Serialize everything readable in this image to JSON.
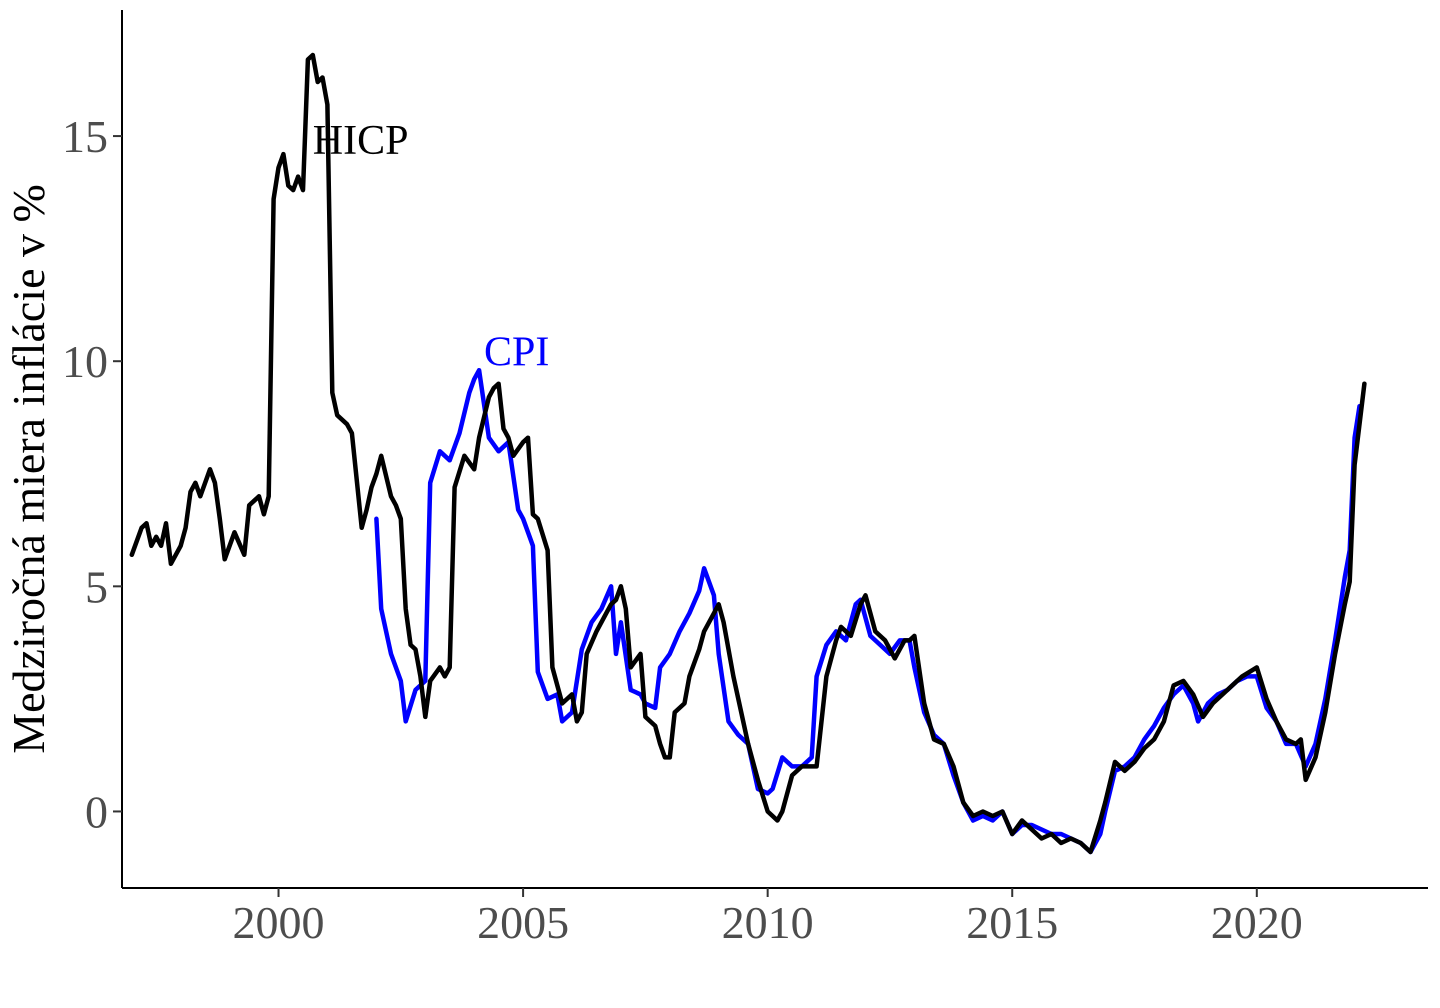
{
  "chart_data": {
    "type": "line",
    "title": "",
    "xlabel": "",
    "ylabel": "Medziročná miera inflácie v %",
    "xlim": [
      1996.8,
      2023.5
    ],
    "ylim": [
      -1.7,
      17.8
    ],
    "x_ticks": [
      2000,
      2005,
      2010,
      2015,
      2020
    ],
    "x_tick_labels": [
      "2000",
      "2005",
      "2010",
      "2015",
      "2020"
    ],
    "y_ticks": [
      0,
      5,
      10,
      15
    ],
    "y_tick_labels": [
      "0",
      "5",
      "10",
      "15"
    ],
    "grid": false,
    "series": [
      {
        "name": "CPI",
        "label": "CPI",
        "color": "#0000ff",
        "label_at": [
          2004.2,
          9.9
        ],
        "points": [
          [
            2002.0,
            6.5
          ],
          [
            2002.1,
            4.5
          ],
          [
            2002.3,
            3.5
          ],
          [
            2002.5,
            2.9
          ],
          [
            2002.6,
            2.0
          ],
          [
            2002.8,
            2.7
          ],
          [
            2003.0,
            2.9
          ],
          [
            2003.1,
            7.3
          ],
          [
            2003.3,
            8.0
          ],
          [
            2003.5,
            7.8
          ],
          [
            2003.7,
            8.4
          ],
          [
            2003.9,
            9.3
          ],
          [
            2004.0,
            9.6
          ],
          [
            2004.1,
            9.8
          ],
          [
            2004.3,
            8.3
          ],
          [
            2004.5,
            8.0
          ],
          [
            2004.7,
            8.2
          ],
          [
            2004.9,
            6.7
          ],
          [
            2005.0,
            6.5
          ],
          [
            2005.2,
            5.9
          ],
          [
            2005.3,
            3.1
          ],
          [
            2005.5,
            2.5
          ],
          [
            2005.7,
            2.6
          ],
          [
            2005.8,
            2.0
          ],
          [
            2006.0,
            2.2
          ],
          [
            2006.2,
            3.6
          ],
          [
            2006.4,
            4.2
          ],
          [
            2006.6,
            4.5
          ],
          [
            2006.8,
            5.0
          ],
          [
            2006.9,
            3.5
          ],
          [
            2007.0,
            4.2
          ],
          [
            2007.2,
            2.7
          ],
          [
            2007.4,
            2.6
          ],
          [
            2007.5,
            2.4
          ],
          [
            2007.7,
            2.3
          ],
          [
            2007.8,
            3.2
          ],
          [
            2008.0,
            3.5
          ],
          [
            2008.2,
            4.0
          ],
          [
            2008.4,
            4.4
          ],
          [
            2008.6,
            4.9
          ],
          [
            2008.7,
            5.4
          ],
          [
            2008.9,
            4.8
          ],
          [
            2009.0,
            3.5
          ],
          [
            2009.2,
            2.0
          ],
          [
            2009.4,
            1.7
          ],
          [
            2009.6,
            1.5
          ],
          [
            2009.8,
            0.5
          ],
          [
            2010.0,
            0.4
          ],
          [
            2010.1,
            0.5
          ],
          [
            2010.3,
            1.2
          ],
          [
            2010.5,
            1.0
          ],
          [
            2010.7,
            1.0
          ],
          [
            2010.9,
            1.2
          ],
          [
            2011.0,
            3.0
          ],
          [
            2011.2,
            3.7
          ],
          [
            2011.4,
            4.0
          ],
          [
            2011.6,
            3.8
          ],
          [
            2011.8,
            4.6
          ],
          [
            2011.9,
            4.7
          ],
          [
            2012.1,
            3.9
          ],
          [
            2012.3,
            3.7
          ],
          [
            2012.5,
            3.5
          ],
          [
            2012.7,
            3.8
          ],
          [
            2012.9,
            3.8
          ],
          [
            2013.0,
            3.2
          ],
          [
            2013.2,
            2.2
          ],
          [
            2013.4,
            1.7
          ],
          [
            2013.6,
            1.5
          ],
          [
            2013.8,
            0.8
          ],
          [
            2014.0,
            0.2
          ],
          [
            2014.2,
            -0.2
          ],
          [
            2014.4,
            -0.1
          ],
          [
            2014.6,
            -0.2
          ],
          [
            2014.8,
            0.0
          ],
          [
            2015.0,
            -0.5
          ],
          [
            2015.2,
            -0.3
          ],
          [
            2015.4,
            -0.3
          ],
          [
            2015.6,
            -0.4
          ],
          [
            2015.8,
            -0.5
          ],
          [
            2016.0,
            -0.5
          ],
          [
            2016.2,
            -0.6
          ],
          [
            2016.4,
            -0.7
          ],
          [
            2016.6,
            -0.9
          ],
          [
            2016.8,
            -0.5
          ],
          [
            2016.9,
            0.0
          ],
          [
            2017.1,
            0.9
          ],
          [
            2017.3,
            1.0
          ],
          [
            2017.5,
            1.2
          ],
          [
            2017.7,
            1.6
          ],
          [
            2017.9,
            1.9
          ],
          [
            2018.1,
            2.3
          ],
          [
            2018.3,
            2.6
          ],
          [
            2018.5,
            2.8
          ],
          [
            2018.7,
            2.4
          ],
          [
            2018.8,
            2.0
          ],
          [
            2019.0,
            2.4
          ],
          [
            2019.2,
            2.6
          ],
          [
            2019.4,
            2.7
          ],
          [
            2019.6,
            2.9
          ],
          [
            2019.8,
            3.0
          ],
          [
            2020.0,
            3.0
          ],
          [
            2020.2,
            2.3
          ],
          [
            2020.4,
            2.0
          ],
          [
            2020.6,
            1.5
          ],
          [
            2020.8,
            1.5
          ],
          [
            2021.0,
            1.0
          ],
          [
            2021.2,
            1.5
          ],
          [
            2021.4,
            2.5
          ],
          [
            2021.6,
            3.8
          ],
          [
            2021.8,
            5.2
          ],
          [
            2021.9,
            5.8
          ],
          [
            2022.0,
            8.3
          ],
          [
            2022.1,
            9.0
          ]
        ]
      },
      {
        "name": "HICP",
        "label": "HICP",
        "color": "#000000",
        "label_at": [
          2000.7,
          14.6
        ],
        "points": [
          [
            1997.0,
            5.7
          ],
          [
            1997.2,
            6.3
          ],
          [
            1997.3,
            6.4
          ],
          [
            1997.4,
            5.9
          ],
          [
            1997.5,
            6.1
          ],
          [
            1997.6,
            5.9
          ],
          [
            1997.7,
            6.4
          ],
          [
            1997.8,
            5.5
          ],
          [
            1998.0,
            5.9
          ],
          [
            1998.1,
            6.3
          ],
          [
            1998.2,
            7.1
          ],
          [
            1998.3,
            7.3
          ],
          [
            1998.4,
            7.0
          ],
          [
            1998.6,
            7.6
          ],
          [
            1998.7,
            7.3
          ],
          [
            1998.8,
            6.5
          ],
          [
            1998.9,
            5.6
          ],
          [
            1999.0,
            5.9
          ],
          [
            1999.1,
            6.2
          ],
          [
            1999.3,
            5.7
          ],
          [
            1999.4,
            6.8
          ],
          [
            1999.6,
            7.0
          ],
          [
            1999.7,
            6.6
          ],
          [
            1999.8,
            7.0
          ],
          [
            1999.9,
            13.6
          ],
          [
            2000.0,
            14.3
          ],
          [
            2000.1,
            14.6
          ],
          [
            2000.2,
            13.9
          ],
          [
            2000.3,
            13.8
          ],
          [
            2000.4,
            14.1
          ],
          [
            2000.5,
            13.8
          ],
          [
            2000.6,
            16.7
          ],
          [
            2000.7,
            16.8
          ],
          [
            2000.8,
            16.2
          ],
          [
            2000.9,
            16.3
          ],
          [
            2001.0,
            15.7
          ],
          [
            2001.1,
            9.3
          ],
          [
            2001.2,
            8.8
          ],
          [
            2001.4,
            8.6
          ],
          [
            2001.5,
            8.4
          ],
          [
            2001.7,
            6.3
          ],
          [
            2001.8,
            6.7
          ],
          [
            2001.9,
            7.2
          ],
          [
            2002.0,
            7.5
          ],
          [
            2002.1,
            7.9
          ],
          [
            2002.3,
            7.0
          ],
          [
            2002.4,
            6.8
          ],
          [
            2002.5,
            6.5
          ],
          [
            2002.6,
            4.5
          ],
          [
            2002.7,
            3.7
          ],
          [
            2002.8,
            3.6
          ],
          [
            2002.9,
            3.0
          ],
          [
            2003.0,
            2.1
          ],
          [
            2003.1,
            2.9
          ],
          [
            2003.3,
            3.2
          ],
          [
            2003.4,
            3.0
          ],
          [
            2003.5,
            3.2
          ],
          [
            2003.6,
            7.2
          ],
          [
            2003.8,
            7.9
          ],
          [
            2004.0,
            7.6
          ],
          [
            2004.1,
            8.3
          ],
          [
            2004.3,
            9.2
          ],
          [
            2004.4,
            9.4
          ],
          [
            2004.5,
            9.5
          ],
          [
            2004.6,
            8.5
          ],
          [
            2004.7,
            8.3
          ],
          [
            2004.8,
            7.9
          ],
          [
            2005.0,
            8.2
          ],
          [
            2005.1,
            8.3
          ],
          [
            2005.2,
            6.6
          ],
          [
            2005.3,
            6.5
          ],
          [
            2005.5,
            5.8
          ],
          [
            2005.6,
            3.2
          ],
          [
            2005.7,
            2.8
          ],
          [
            2005.8,
            2.4
          ],
          [
            2006.0,
            2.6
          ],
          [
            2006.1,
            2.0
          ],
          [
            2006.2,
            2.2
          ],
          [
            2006.3,
            3.5
          ],
          [
            2006.5,
            4.0
          ],
          [
            2006.7,
            4.4
          ],
          [
            2006.8,
            4.6
          ],
          [
            2006.9,
            4.7
          ],
          [
            2007.0,
            5.0
          ],
          [
            2007.1,
            4.5
          ],
          [
            2007.2,
            3.2
          ],
          [
            2007.4,
            3.5
          ],
          [
            2007.5,
            2.1
          ],
          [
            2007.7,
            1.9
          ],
          [
            2007.8,
            1.5
          ],
          [
            2007.9,
            1.2
          ],
          [
            2008.0,
            1.2
          ],
          [
            2008.1,
            2.2
          ],
          [
            2008.3,
            2.4
          ],
          [
            2008.4,
            3.0
          ],
          [
            2008.6,
            3.6
          ],
          [
            2008.7,
            4.0
          ],
          [
            2008.9,
            4.4
          ],
          [
            2009.0,
            4.6
          ],
          [
            2009.1,
            4.2
          ],
          [
            2009.3,
            3.0
          ],
          [
            2009.4,
            2.5
          ],
          [
            2009.6,
            1.5
          ],
          [
            2009.8,
            0.7
          ],
          [
            2010.0,
            0.0
          ],
          [
            2010.1,
            -0.1
          ],
          [
            2010.2,
            -0.2
          ],
          [
            2010.3,
            0.0
          ],
          [
            2010.5,
            0.8
          ],
          [
            2010.7,
            1.0
          ],
          [
            2010.8,
            1.0
          ],
          [
            2011.0,
            1.0
          ],
          [
            2011.2,
            3.0
          ],
          [
            2011.4,
            3.8
          ],
          [
            2011.5,
            4.1
          ],
          [
            2011.7,
            3.9
          ],
          [
            2011.9,
            4.6
          ],
          [
            2012.0,
            4.8
          ],
          [
            2012.2,
            4.0
          ],
          [
            2012.4,
            3.8
          ],
          [
            2012.6,
            3.4
          ],
          [
            2012.8,
            3.8
          ],
          [
            2012.9,
            3.8
          ],
          [
            2013.0,
            3.9
          ],
          [
            2013.2,
            2.4
          ],
          [
            2013.4,
            1.6
          ],
          [
            2013.6,
            1.5
          ],
          [
            2013.8,
            1.0
          ],
          [
            2014.0,
            0.2
          ],
          [
            2014.2,
            -0.1
          ],
          [
            2014.4,
            0.0
          ],
          [
            2014.6,
            -0.1
          ],
          [
            2014.8,
            0.0
          ],
          [
            2015.0,
            -0.5
          ],
          [
            2015.2,
            -0.2
          ],
          [
            2015.4,
            -0.4
          ],
          [
            2015.6,
            -0.6
          ],
          [
            2015.8,
            -0.5
          ],
          [
            2016.0,
            -0.7
          ],
          [
            2016.2,
            -0.6
          ],
          [
            2016.4,
            -0.7
          ],
          [
            2016.6,
            -0.9
          ],
          [
            2016.8,
            -0.2
          ],
          [
            2016.9,
            0.2
          ],
          [
            2017.1,
            1.1
          ],
          [
            2017.3,
            0.9
          ],
          [
            2017.5,
            1.1
          ],
          [
            2017.7,
            1.4
          ],
          [
            2017.9,
            1.6
          ],
          [
            2018.1,
            2.0
          ],
          [
            2018.3,
            2.8
          ],
          [
            2018.5,
            2.9
          ],
          [
            2018.7,
            2.6
          ],
          [
            2018.9,
            2.1
          ],
          [
            2019.1,
            2.4
          ],
          [
            2019.3,
            2.6
          ],
          [
            2019.5,
            2.8
          ],
          [
            2019.7,
            3.0
          ],
          [
            2020.0,
            3.2
          ],
          [
            2020.2,
            2.5
          ],
          [
            2020.4,
            2.0
          ],
          [
            2020.6,
            1.6
          ],
          [
            2020.8,
            1.5
          ],
          [
            2020.9,
            1.6
          ],
          [
            2021.0,
            0.7
          ],
          [
            2021.2,
            1.2
          ],
          [
            2021.4,
            2.2
          ],
          [
            2021.6,
            3.5
          ],
          [
            2021.8,
            4.6
          ],
          [
            2021.9,
            5.1
          ],
          [
            2022.0,
            7.7
          ],
          [
            2022.2,
            9.5
          ]
        ]
      }
    ]
  }
}
